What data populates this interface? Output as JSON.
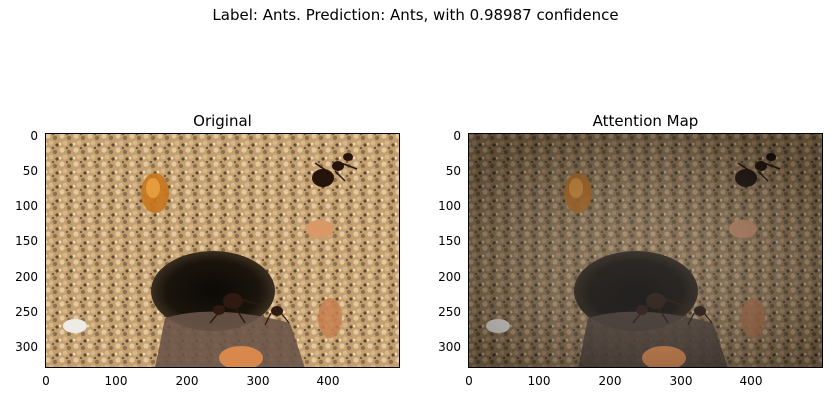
{
  "suptitle": "Label: Ants. Prediction: Ants, with 0.98987 confidence",
  "panels": [
    {
      "title": "Original",
      "xticks": [
        "0",
        "100",
        "200",
        "300",
        "400"
      ],
      "yticks": [
        "0",
        "50",
        "100",
        "150",
        "200",
        "250",
        "300"
      ],
      "image_description_colors": {
        "sand": "#c8a878",
        "hole": "#1a140c",
        "ant": "#2a1810"
      }
    },
    {
      "title": "Attention Map",
      "xticks": [
        "0",
        "100",
        "200",
        "300",
        "400"
      ],
      "yticks": [
        "0",
        "50",
        "100",
        "150",
        "200",
        "250",
        "300"
      ],
      "image_description_colors": {
        "sand": "#8a7458",
        "hole": "#0e0a06",
        "ant": "#1c100a"
      }
    }
  ]
}
